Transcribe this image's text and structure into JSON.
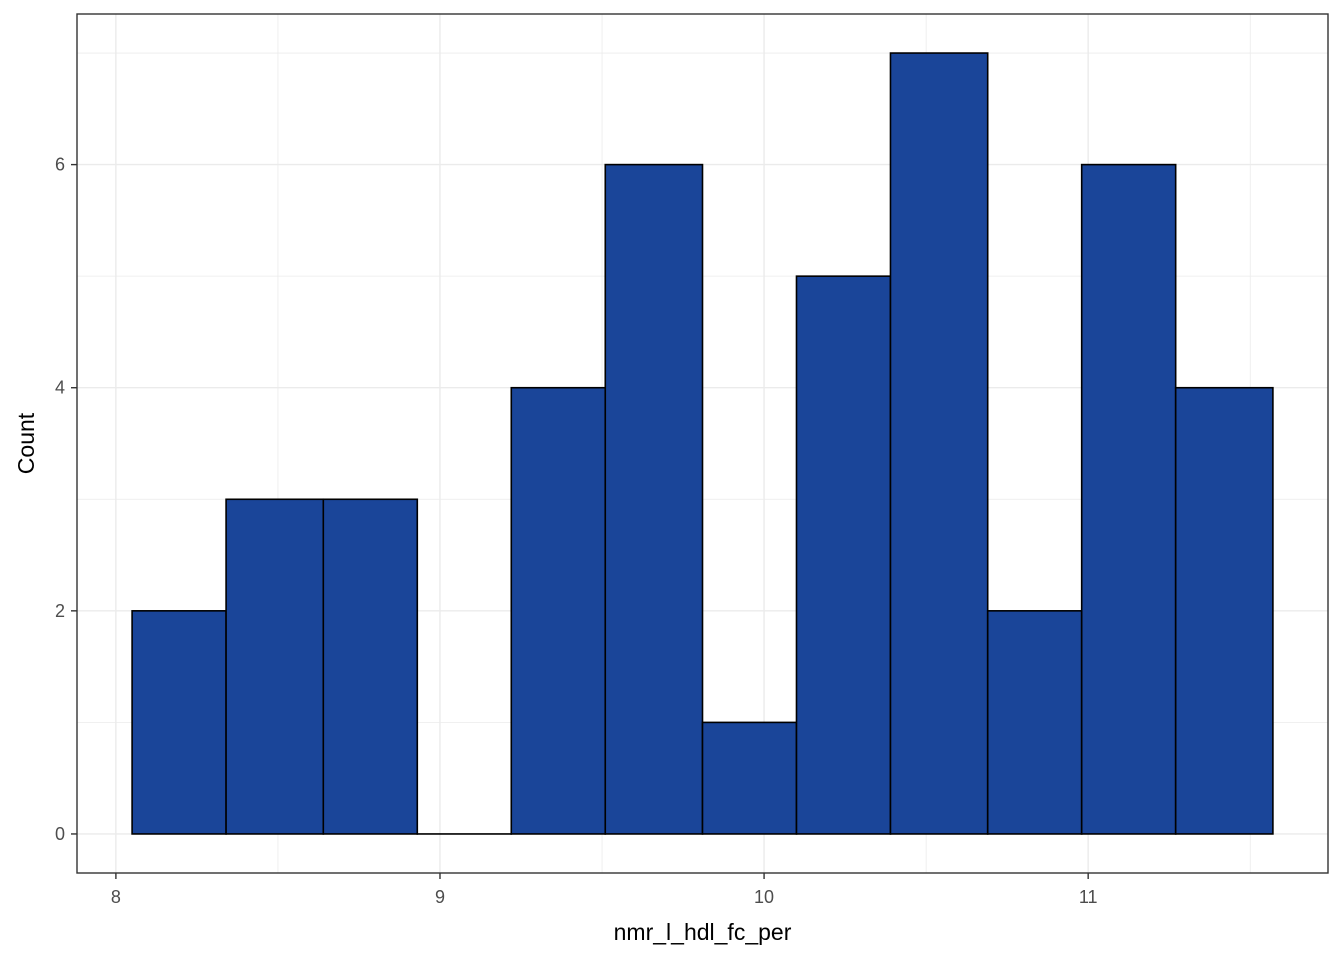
{
  "chart_data": {
    "type": "bar",
    "subtype": "histogram",
    "title": "",
    "xlabel": "nmr_l_hdl_fc_per",
    "ylabel": "Count",
    "bins": [
      {
        "x0": 8.05,
        "x1": 8.34,
        "count": 2
      },
      {
        "x0": 8.34,
        "x1": 8.64,
        "count": 3
      },
      {
        "x0": 8.64,
        "x1": 8.93,
        "count": 3
      },
      {
        "x0": 8.93,
        "x1": 9.22,
        "count": 0
      },
      {
        "x0": 9.22,
        "x1": 9.51,
        "count": 4
      },
      {
        "x0": 9.51,
        "x1": 9.81,
        "count": 6
      },
      {
        "x0": 9.81,
        "x1": 10.1,
        "count": 1
      },
      {
        "x0": 10.1,
        "x1": 10.39,
        "count": 5
      },
      {
        "x0": 10.39,
        "x1": 10.69,
        "count": 7
      },
      {
        "x0": 10.69,
        "x1": 10.98,
        "count": 2
      },
      {
        "x0": 10.98,
        "x1": 11.27,
        "count": 6
      },
      {
        "x0": 11.27,
        "x1": 11.57,
        "count": 4
      }
    ],
    "xlim": [
      7.88,
      11.74
    ],
    "ylim": [
      -0.35,
      7.35
    ],
    "x_ticks": [
      8,
      9,
      10,
      11
    ],
    "x_tick_labels": [
      "8",
      "9",
      "10",
      "11"
    ],
    "y_ticks": [
      0,
      2,
      4,
      6
    ],
    "y_tick_labels": [
      "0",
      "2",
      "4",
      "6"
    ],
    "x_minor": [
      8.5,
      9.5,
      10.5,
      11.5
    ],
    "y_minor": [
      1,
      3,
      5,
      7
    ],
    "grid": true,
    "legend": "none",
    "colors": {
      "bar_fill": "#1a4599",
      "bar_stroke": "#000000",
      "grid": "#ebebeb",
      "panel_border": "#333333"
    }
  }
}
